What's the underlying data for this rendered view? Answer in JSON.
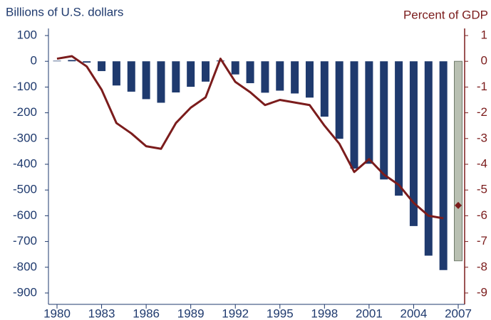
{
  "chart_data": {
    "type": "bar-line",
    "y_label": "Billions of U.S. dollars",
    "y2_label": "Percent of GDP",
    "categories": [
      "1980",
      null,
      null,
      "1983",
      null,
      null,
      "1986",
      null,
      null,
      "1989",
      null,
      null,
      "1992",
      null,
      null,
      "1995",
      null,
      null,
      "1998",
      null,
      null,
      "2001",
      null,
      null,
      "2004",
      null,
      null,
      "2007"
    ],
    "ylim": [
      -900,
      100
    ],
    "yticks": [
      100,
      0,
      -100,
      -200,
      -300,
      -400,
      -500,
      -600,
      -700,
      -800,
      -900
    ],
    "y2lim": [
      -9,
      1
    ],
    "y2ticks": [
      1,
      0,
      -1,
      -2,
      -3,
      -4,
      -5,
      -6,
      -7,
      -8,
      -9
    ],
    "series": [
      {
        "type": "bar",
        "color": "#1f3a6e",
        "colors": [
          "#1f3a6e",
          "#1f3a6e",
          "#1f3a6e",
          "#1f3a6e",
          "#1f3a6e",
          "#1f3a6e",
          "#1f3a6e",
          "#1f3a6e",
          "#1f3a6e",
          "#1f3a6e",
          "#1f3a6e",
          "#1f3a6e",
          "#1f3a6e",
          "#1f3a6e",
          "#1f3a6e",
          "#1f3a6e",
          "#1f3a6e",
          "#1f3a6e",
          "#1f3a6e",
          "#1f3a6e",
          "#1f3a6e",
          "#1f3a6e",
          "#1f3a6e",
          "#1f3a6e",
          "#1f3a6e",
          "#1f3a6e",
          "#1f3a6e",
          "#b9c0b2"
        ],
        "values": [
          2,
          5,
          -5,
          -38,
          -94,
          -118,
          -147,
          -161,
          -121,
          -99,
          -79,
          3,
          -51,
          -85,
          -122,
          -114,
          -125,
          -141,
          -215,
          -301,
          -417,
          -398,
          -459,
          -522,
          -640,
          -755,
          -811,
          -775
        ]
      },
      {
        "type": "line",
        "axis": "y2",
        "color": "#7b1c1c",
        "values": [
          0.1,
          0.2,
          -0.2,
          -1.1,
          -2.4,
          -2.8,
          -3.3,
          -3.4,
          -2.4,
          -1.8,
          -1.4,
          0.1,
          -0.8,
          -1.2,
          -1.7,
          -1.5,
          -1.6,
          -1.7,
          -2.5,
          -3.2,
          -4.3,
          -3.8,
          -4.4,
          -4.8,
          -5.5,
          -6.0,
          -6.1,
          null
        ]
      },
      {
        "type": "marker",
        "axis": "y2",
        "color": "#7b1c1c",
        "marker": "diamond",
        "values": [
          null,
          null,
          null,
          null,
          null,
          null,
          null,
          null,
          null,
          null,
          null,
          null,
          null,
          null,
          null,
          null,
          null,
          null,
          null,
          null,
          null,
          null,
          null,
          null,
          null,
          null,
          null,
          -5.6
        ]
      }
    ]
  }
}
